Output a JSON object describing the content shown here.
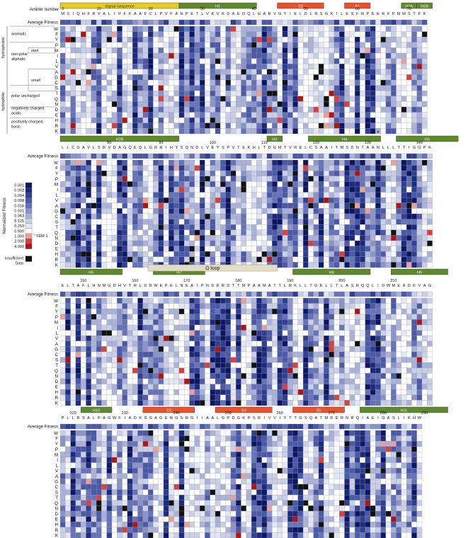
{
  "chart_data": {
    "type": "heatmap",
    "title": "",
    "xlabel": "Ambler number",
    "row_header_label": "Average Fitness",
    "amino_acid_rows": [
      "W",
      "F",
      "Y",
      "P",
      "M",
      "I",
      "L",
      "V",
      "A",
      "G",
      "C",
      "S",
      "T",
      "Q",
      "N",
      "D",
      "E",
      "H",
      "R",
      "K"
    ],
    "panels": [
      {
        "id": "panel-1",
        "sequence": "MSIQHFRVALIPFFAAFCLPVFAHPETLVKVKDAEDQLGARVGYIELDLNSGKILESFRPEERFPMMSTFK",
        "ambler_ticks": [
          {
            "label": "3",
            "index": 0
          },
          {
            "label": "10",
            "index": 7
          },
          {
            "label": "20",
            "index": 17
          },
          {
            "label": "30",
            "index": 27
          },
          {
            "label": "40",
            "index": 37
          },
          {
            "label": "50",
            "index": 47
          },
          {
            "label": "60",
            "index": 57
          },
          {
            "label": "70",
            "index": 67
          }
        ],
        "structure": [
          {
            "label": "Signal Sequence",
            "start": 0,
            "end": 22,
            "kind": "signal"
          },
          {
            "label": "H1",
            "start": 23,
            "end": 37,
            "kind": "helix"
          },
          {
            "label": "S2",
            "start": 42,
            "end": 50,
            "kind": "strand"
          },
          {
            "label": "S1",
            "start": 55,
            "end": 59,
            "kind": "strand"
          },
          {
            "label": "H2A",
            "start": 66,
            "end": 68,
            "kind": "helix"
          },
          {
            "label": "H2B",
            "start": 69,
            "end": 71,
            "kind": "helix"
          }
        ],
        "stars": [
          67,
          70
        ],
        "seed": 11
      },
      {
        "id": "panel-2",
        "sequence": "LLCGAVLSRVDAGQEQLGRRIHYSQNDLVEYSPVTEKHLTDGMTVRELCSAAITMSDNTAANLLLTTIGGPK",
        "ambler_ticks": [
          {
            "label": "80",
            "index": 9
          },
          {
            "label": "90",
            "index": 19
          },
          {
            "label": "100",
            "index": 29
          },
          {
            "label": "110",
            "index": 39
          },
          {
            "label": "120",
            "index": 49
          },
          {
            "label": "130",
            "index": 59
          },
          {
            "label": "140",
            "index": 69
          }
        ],
        "structure": [
          {
            "label": "H2B",
            "start": 0,
            "end": 22,
            "kind": "helix"
          },
          {
            "label": "H3",
            "start": 40,
            "end": 42,
            "kind": "helix"
          },
          {
            "label": "H4",
            "start": 48,
            "end": 61,
            "kind": "helix"
          },
          {
            "label": "H5",
            "start": 65,
            "end": 76,
            "kind": "helix"
          }
        ],
        "stars": [
          61
        ],
        "seed": 23
      },
      {
        "id": "panel-3",
        "sequence": "ELTAFLHNMGDHVTRLDRWEPELNEAIPNDERDTTMPAAMATTLRKLLTGELLTLASRQQLIDWMEADKVAG",
        "ambler_ticks": [
          {
            "label": "150",
            "index": 4
          },
          {
            "label": "160",
            "index": 14
          },
          {
            "label": "170",
            "index": 24
          },
          {
            "label": "180",
            "index": 34
          },
          {
            "label": "190",
            "index": 44
          },
          {
            "label": "200",
            "index": 54
          },
          {
            "label": "210",
            "index": 64
          }
        ],
        "structure": [
          {
            "label": "H6",
            "start": 0,
            "end": 11,
            "kind": "helix"
          },
          {
            "label": "H7",
            "start": 18,
            "end": 27,
            "kind": "helix"
          },
          {
            "label": "Ω loop",
            "start": 17,
            "end": 41,
            "kind": "loop"
          },
          {
            "label": "H8",
            "start": 45,
            "end": 59,
            "kind": "helix"
          },
          {
            "label": "H9",
            "start": 64,
            "end": 74,
            "kind": "helix"
          }
        ],
        "stars": [],
        "seed": 37
      },
      {
        "id": "panel-4",
        "sequence": "PLLRSALPAGWFIADKSGAGERGSRGIIAALGPDGKPSRIVVIYTTGSQATMDERNRQIAEIGASLIKHW",
        "ambler_ticks": [
          {
            "label": "220",
            "index": 2
          },
          {
            "label": "230",
            "index": 12
          },
          {
            "label": "240",
            "index": 22
          },
          {
            "label": "250",
            "index": 32
          },
          {
            "label": "260",
            "index": 42
          },
          {
            "label": "270",
            "index": 52
          },
          {
            "label": "280",
            "index": 62
          },
          {
            "label": "290",
            "index": 70
          }
        ],
        "structure": [
          {
            "label": "H10",
            "start": 4,
            "end": 9,
            "kind": "helix"
          },
          {
            "label": "S3",
            "start": 16,
            "end": 25,
            "kind": "strand"
          },
          {
            "label": "S4",
            "start": 30,
            "end": 40,
            "kind": "strand"
          },
          {
            "label": "S5",
            "start": 45,
            "end": 54,
            "kind": "strand"
          },
          {
            "label": "H11",
            "start": 58,
            "end": 74,
            "kind": "helix"
          }
        ],
        "stars": [],
        "seed": 53
      }
    ],
    "group_labels": [
      {
        "label": "hydrophobic",
        "level": 0,
        "rows": [
          0,
          7
        ]
      },
      {
        "label": "hydrophilic",
        "level": 0,
        "rows": [
          8,
          19
        ]
      },
      {
        "label": "aromatic",
        "level": 1,
        "rows": [
          0,
          2
        ]
      },
      {
        "label": "non-polar aliphatic",
        "level": 1,
        "rows": [
          3,
          7
        ]
      },
      {
        "label": "start",
        "level": 2,
        "rows": [
          4,
          4
        ]
      },
      {
        "label": "small",
        "level": 2,
        "rows": [
          8,
          11
        ]
      },
      {
        "label": "polar uncharged",
        "level": 1,
        "rows": [
          11,
          14
        ]
      },
      {
        "label": "negatively charged, acidic",
        "level": 1,
        "rows": [
          15,
          16
        ]
      },
      {
        "label": "positively charged, basic",
        "level": 1,
        "rows": [
          17,
          19
        ]
      }
    ],
    "color_scale": {
      "label": "Normalized Fitness",
      "ticks": [
        "0.001",
        "0.002",
        "0.004",
        "0.008",
        "0.016",
        "0.031",
        "0.063",
        "0.125",
        "0.250",
        "0.500",
        "1.000",
        "2.000",
        "4.000"
      ],
      "reference_label": "TEM-1",
      "insufficient_label": "Insufficient Data",
      "colors": [
        "#0c1663",
        "#1c2a7d",
        "#2f3f92",
        "#4a59a8",
        "#6673b8",
        "#8a94c9",
        "#aab2d9",
        "#c9cfe7",
        "#e3e6f3",
        "#ffffff",
        "#e8a09a",
        "#d9413a",
        "#b3140e"
      ],
      "no_data_color": "#111111"
    }
  }
}
